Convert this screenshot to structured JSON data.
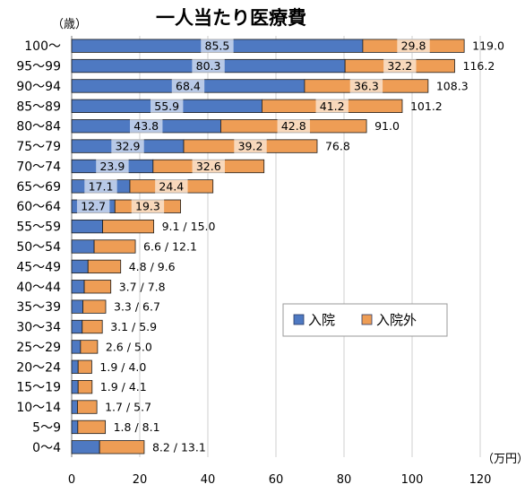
{
  "chart_data": {
    "type": "bar",
    "orientation": "horizontal",
    "stacked": true,
    "title": "一人当たり医療費",
    "y_unit": "（歳）",
    "x_unit": "（万円）",
    "xlim": [
      0,
      120
    ],
    "x_ticks": [
      "0",
      "20",
      "40",
      "60",
      "80",
      "100",
      "120"
    ],
    "grid": true,
    "legend_position": "right-middle",
    "categories": [
      "100～",
      "95～99",
      "90～94",
      "85～89",
      "80～84",
      "75～79",
      "70～74",
      "65～69",
      "60～64",
      "55～59",
      "50～54",
      "45～49",
      "40～44",
      "35～39",
      "30～34",
      "25～29",
      "20～24",
      "15～19",
      "10～14",
      "5～9",
      "0～4"
    ],
    "series": [
      {
        "name": "入院",
        "color": "#4e79c2",
        "values": [
          85.5,
          80.3,
          68.4,
          55.9,
          43.8,
          32.9,
          23.9,
          17.1,
          12.7,
          9.1,
          6.6,
          4.8,
          3.7,
          3.3,
          3.1,
          2.6,
          1.9,
          1.9,
          1.7,
          1.8,
          8.2
        ],
        "labels": [
          "85.5",
          "80.3",
          "68.4",
          "55.9",
          "43.8",
          "32.9",
          "23.9",
          "17.1",
          "12.7",
          "",
          "",
          "",
          "",
          "",
          "",
          "",
          "",
          "",
          "",
          "",
          ""
        ]
      },
      {
        "name": "入院外",
        "color": "#ee9d55",
        "values": [
          29.8,
          32.2,
          36.3,
          41.2,
          42.8,
          39.2,
          32.6,
          24.4,
          19.3,
          15.0,
          12.1,
          9.6,
          7.8,
          6.7,
          5.9,
          5.0,
          4.0,
          4.1,
          5.7,
          8.1,
          13.1
        ],
        "labels": [
          "29.8",
          "32.2",
          "36.3",
          "41.2",
          "42.8",
          "39.2",
          "32.6",
          "24.4",
          "19.3",
          "",
          "",
          "",
          "",
          "",
          "",
          "",
          "",
          "",
          "",
          "",
          ""
        ]
      }
    ],
    "end_labels": [
      "119.0",
      "116.2",
      "108.3",
      "101.2",
      "91.0",
      "76.8",
      "",
      "",
      "",
      "9.1 / 15.0",
      "6.6 / 12.1",
      "4.8 / 9.6",
      "3.7 / 7.8",
      "3.3 / 6.7",
      "3.1 / 5.9",
      "2.6 / 5.0",
      "1.9 / 4.0",
      "1.9 / 4.1",
      "1.7 / 5.7",
      "1.8 / 8.1",
      "8.2 / 13.1"
    ]
  }
}
